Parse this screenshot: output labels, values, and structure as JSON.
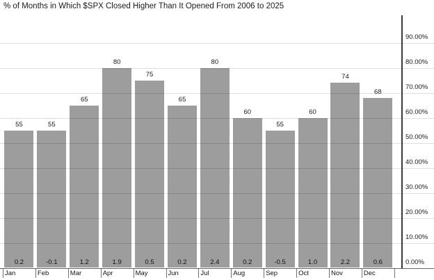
{
  "title": "% of Months in Which $SPX Closed Higher Than It Opened From 2006 to 2025",
  "chart_data": {
    "type": "bar",
    "title": "% of Months in Which $SPX Closed Higher Than It Opened From 2006 to 2025",
    "categories": [
      "Jan",
      "Feb",
      "Mar",
      "Apr",
      "May",
      "Jun",
      "Jul",
      "Aug",
      "Sep",
      "Oct",
      "Nov",
      "Dec"
    ],
    "values": [
      55,
      55,
      65,
      80,
      75,
      65,
      80,
      60,
      55,
      60,
      74,
      68
    ],
    "value_labels": [
      "55",
      "55",
      "65",
      "80",
      "75",
      "65",
      "80",
      "60",
      "55",
      "60",
      "74",
      "68"
    ],
    "bottom_labels": [
      "0.2",
      "-0.1",
      "1.2",
      "1.9",
      "0.5",
      "0.2",
      "2.4",
      "0.2",
      "-0.5",
      "1.0",
      "2.2",
      "0.6"
    ],
    "bottom_values": [
      0.2,
      -0.1,
      1.2,
      1.9,
      0.5,
      0.2,
      2.4,
      0.2,
      -0.5,
      1.0,
      2.2,
      0.6
    ],
    "xlabel": "",
    "ylabel": "",
    "ylim": [
      0,
      100
    ],
    "y_tick_values": [
      0,
      10,
      20,
      30,
      40,
      50,
      60,
      70,
      80,
      90
    ],
    "y_tick_labels": [
      "0.00%",
      "10.00%",
      "20.00%",
      "30.00%",
      "40.00%",
      "50.00%",
      "60.00%",
      "70.00%",
      "80.00%",
      "90.00%"
    ],
    "grid": true,
    "legend": false,
    "y_axis_side": "right"
  },
  "colors": {
    "bar": "#9d9d9d",
    "grid_overlay": "rgba(0,0,0,0.13)",
    "axis_line": "#3a3a3a",
    "category_line": "#737373",
    "text": "#1a1a1a",
    "background": "#ffffff"
  }
}
